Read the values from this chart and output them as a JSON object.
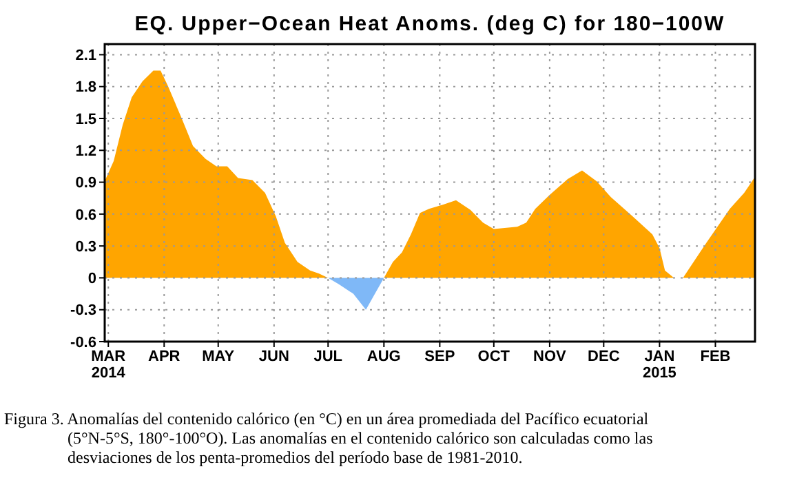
{
  "chart_data": {
    "type": "area",
    "title": "EQ. Upper−Ocean Heat Anoms. (deg C) for 180−100W",
    "x": [
      "2014-02-27",
      "2014-03-04",
      "2014-03-09",
      "2014-03-14",
      "2014-03-20",
      "2014-03-26",
      "2014-03-30",
      "2014-04-03",
      "2014-04-11",
      "2014-04-17",
      "2014-04-24",
      "2014-04-30",
      "2014-05-06",
      "2014-05-12",
      "2014-05-20",
      "2014-05-27",
      "2014-06-02",
      "2014-06-07",
      "2014-06-14",
      "2014-06-21",
      "2014-06-26",
      "2014-07-01",
      "2014-07-07",
      "2014-07-15",
      "2014-07-22",
      "2014-07-27",
      "2014-08-01",
      "2014-08-06",
      "2014-08-11",
      "2014-08-16",
      "2014-08-21",
      "2014-08-26",
      "2014-09-03",
      "2014-09-10",
      "2014-09-18",
      "2014-09-25",
      "2014-10-01",
      "2014-10-14",
      "2014-10-19",
      "2014-10-24",
      "2014-11-01",
      "2014-11-11",
      "2014-11-19",
      "2014-11-27",
      "2014-12-05",
      "2014-12-17",
      "2014-12-28",
      "2015-01-01",
      "2015-01-04",
      "2015-01-09",
      "2015-01-14",
      "2015-01-27",
      "2015-02-09",
      "2015-02-17",
      "2015-02-23"
    ],
    "series": [
      {
        "color": "#ffa500",
        "values": [
          0.91,
          1.1,
          1.44,
          1.7,
          1.85,
          1.95,
          1.95,
          1.81,
          1.49,
          1.24,
          1.12,
          1.05,
          1.05,
          0.94,
          0.92,
          0.8,
          0.58,
          0.33,
          0.15,
          0.07,
          0.04,
          0,
          null,
          null,
          null,
          null,
          0,
          0.15,
          0.24,
          0.41,
          0.61,
          0.65,
          0.69,
          0.73,
          0.64,
          0.52,
          0.46,
          0.48,
          0.52,
          0.65,
          0.78,
          0.93,
          1.01,
          0.91,
          0.76,
          0.58,
          0.41,
          0.28,
          0.07,
          0,
          0,
          0.33,
          0.65,
          0.8,
          0.95
        ]
      },
      {
        "color": "#7fb8f7",
        "values": [
          null,
          null,
          null,
          null,
          null,
          null,
          null,
          null,
          null,
          null,
          null,
          null,
          null,
          null,
          null,
          null,
          null,
          null,
          null,
          null,
          null,
          0,
          -0.06,
          -0.15,
          -0.3,
          -0.15,
          0,
          null,
          null,
          null,
          null,
          null,
          null,
          null,
          null,
          null,
          null,
          null,
          null,
          null,
          null,
          null,
          null,
          null,
          null,
          null,
          null,
          null,
          null,
          null,
          null,
          null,
          null,
          null,
          null
        ]
      }
    ],
    "xlim": [
      "2014-02-27",
      "2015-02-23"
    ],
    "xticks": [
      {
        "value": "2014-03-01",
        "label": "MAR\n2014"
      },
      {
        "value": "2014-04-01",
        "label": "APR"
      },
      {
        "value": "2014-05-01",
        "label": "MAY"
      },
      {
        "value": "2014-06-01",
        "label": "JUN"
      },
      {
        "value": "2014-07-01",
        "label": "JUL"
      },
      {
        "value": "2014-08-01",
        "label": "AUG"
      },
      {
        "value": "2014-09-01",
        "label": "SEP"
      },
      {
        "value": "2014-10-01",
        "label": "OCT"
      },
      {
        "value": "2014-11-01",
        "label": "NOV"
      },
      {
        "value": "2014-12-01",
        "label": "DEC"
      },
      {
        "value": "2015-01-01",
        "label": "JAN\n2015"
      },
      {
        "value": "2015-02-01",
        "label": "FEB"
      }
    ],
    "ylim": [
      -0.6,
      2.2
    ],
    "yticks": [
      -0.6,
      -0.3,
      0,
      0.3,
      0.6,
      0.9,
      1.2,
      1.5,
      1.8,
      2.1
    ],
    "grid": true,
    "annotations": [
      "Figura 3. Anomalías del contenido calórico (en °C) en un área promediada del Pacífico ecuatorial (5°N-5°S, 180°-100°O). Las anomalías en el contenido calórico son calculadas como las desviaciones de los penta-promedios del período base de 1981-2010."
    ]
  }
}
